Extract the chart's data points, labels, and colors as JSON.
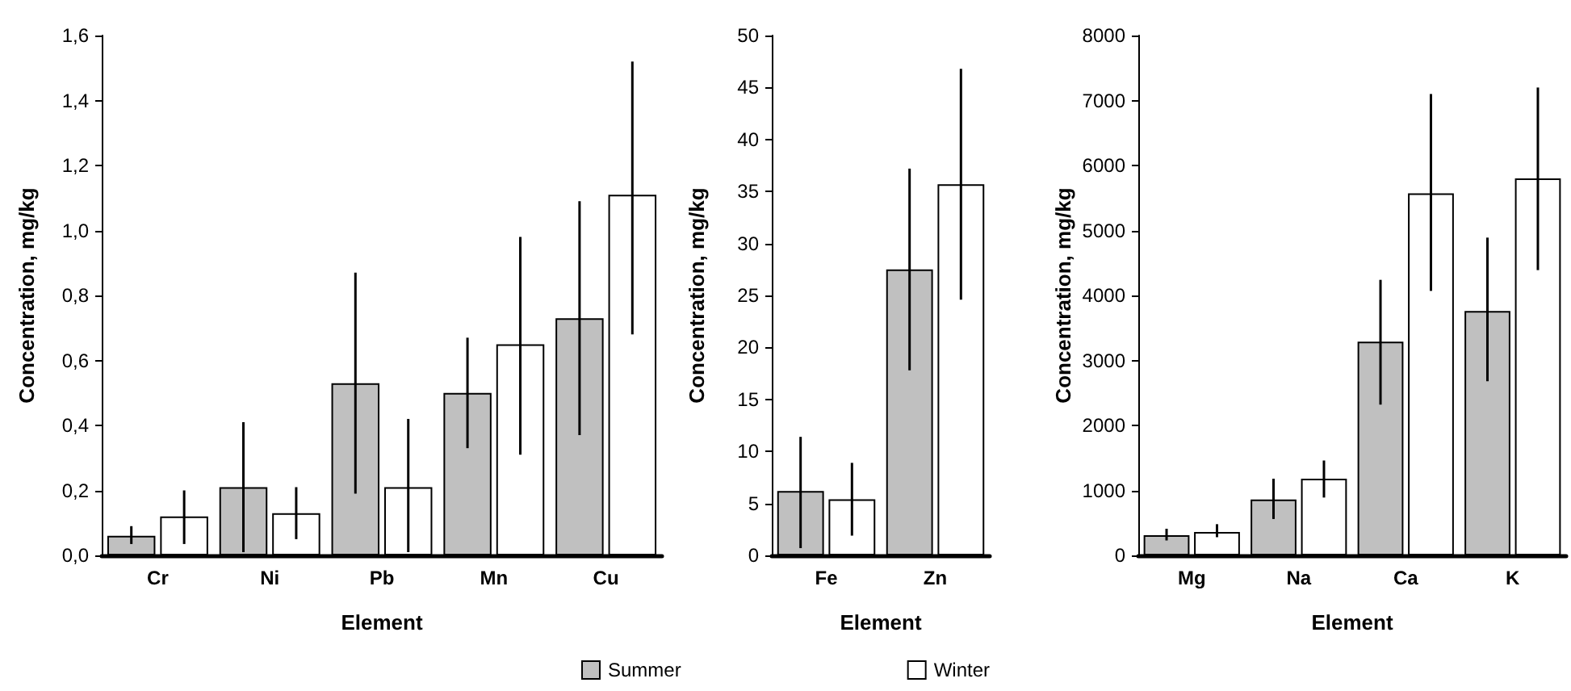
{
  "chart_data": [
    {
      "type": "bar",
      "xlabel": "Element",
      "ylabel": "Concentration, mg/kg",
      "categories": [
        "Cr",
        "Ni",
        "Pb",
        "Mn",
        "Cu"
      ],
      "series": [
        {
          "color": "#c0c0c0",
          "values": [
            0.06,
            0.21,
            0.53,
            0.5,
            0.73
          ],
          "errors": [
            [
              0.035,
              0.09
            ],
            [
              0.01,
              0.41
            ],
            [
              0.19,
              0.87
            ],
            [
              0.33,
              0.67
            ],
            [
              0.37,
              1.09
            ]
          ]
        },
        {
          "color": "#ffffff",
          "values": [
            0.12,
            0.13,
            0.21,
            0.65,
            1.11
          ],
          "errors": [
            [
              0.035,
              0.2
            ],
            [
              0.05,
              0.21
            ],
            [
              0.01,
              0.42
            ],
            [
              0.31,
              0.98
            ],
            [
              0.68,
              1.52
            ]
          ]
        }
      ],
      "ylim": [
        0,
        1.6
      ],
      "yticks": [
        {
          "value": 0,
          "label": "0,0"
        },
        {
          "value": 0.2,
          "label": "0,2"
        },
        {
          "value": 0.4,
          "label": "0,4"
        },
        {
          "value": 0.6,
          "label": "0,6"
        },
        {
          "value": 0.8,
          "label": "0,8"
        },
        {
          "value": 1.0,
          "label": "1,0"
        },
        {
          "value": 1.2,
          "label": "1,2"
        },
        {
          "value": 1.4,
          "label": "1,4"
        },
        {
          "value": 1.6,
          "label": "1,6"
        }
      ],
      "grid": false
    },
    {
      "type": "bar",
      "xlabel": "Element",
      "ylabel": "Concentration, mg/kg",
      "categories": [
        "Fe",
        "Zn"
      ],
      "series": [
        {
          "name": "Summer",
          "color": "#c0c0c0",
          "values": [
            6.2,
            27.5
          ],
          "errors": [
            [
              0.7,
              11.4
            ],
            [
              17.8,
              37.2
            ]
          ]
        },
        {
          "name": "Winter",
          "color": "#ffffff",
          "values": [
            5.4,
            35.7
          ],
          "errors": [
            [
              1.9,
              8.9
            ],
            [
              24.6,
              46.8
            ]
          ]
        }
      ],
      "ylim": [
        0,
        50
      ],
      "yticks": [
        0,
        5,
        10,
        15,
        20,
        25,
        30,
        35,
        40,
        45,
        50
      ],
      "grid": false,
      "legend": "bottom"
    },
    {
      "type": "bar",
      "xlabel": "Element",
      "ylabel": "Concentration, mg/kg",
      "categories": [
        "Mg",
        "Na",
        "Ca",
        "K"
      ],
      "series": [
        {
          "color": "#c0c0c0",
          "values": [
            310,
            860,
            3290,
            3760
          ],
          "errors": [
            [
              230,
              410
            ],
            [
              560,
              1180
            ],
            [
              2320,
              4240
            ],
            [
              2680,
              4890
            ]
          ]
        },
        {
          "color": "#ffffff",
          "values": [
            360,
            1180,
            5570,
            5800
          ],
          "errors": [
            [
              280,
              480
            ],
            [
              890,
              1460
            ],
            [
              4070,
              7100
            ],
            [
              4390,
              7200
            ]
          ]
        }
      ],
      "ylim": [
        0,
        8000
      ],
      "yticks": [
        0,
        1000,
        2000,
        3000,
        4000,
        5000,
        6000,
        7000,
        8000
      ],
      "grid": false
    }
  ]
}
